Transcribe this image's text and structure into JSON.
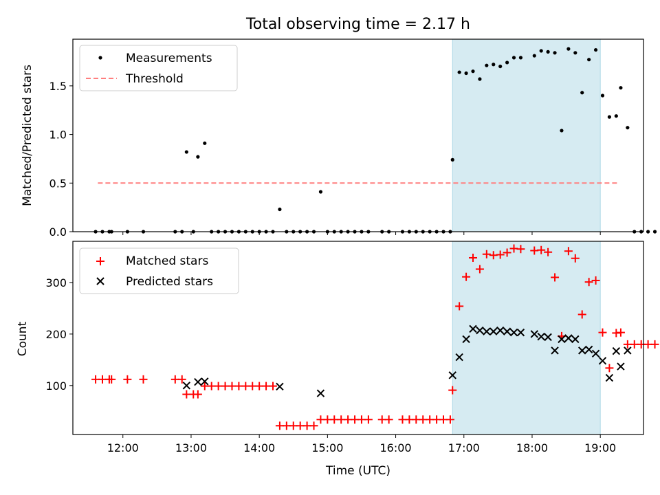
{
  "title": "Total observing time = 2.17 h",
  "colors": {
    "measurements": "#000000",
    "threshold": "#ff7f7f",
    "matched": "#ff0000",
    "predicted": "#000000",
    "span_fill": "#add8e6"
  },
  "chart_data": [
    {
      "type": "scatter",
      "ylabel": "Matched/Predicted stars",
      "xlabel": "",
      "xlim": [
        "11:16",
        "19:38"
      ],
      "ylim": [
        0,
        1.98
      ],
      "yticks": [
        "0.0",
        "0.5",
        "1.0",
        "1.5"
      ],
      "ytick_values": [
        0,
        0.5,
        1.0,
        1.5
      ],
      "legend": {
        "placement": "top-left",
        "entries": [
          "Measurements",
          "Threshold"
        ]
      },
      "highlight_span": [
        "16:50",
        "19:00"
      ],
      "threshold": {
        "name": "Threshold",
        "y": 0.5,
        "x": [
          "11:38",
          "19:16"
        ]
      },
      "series": [
        {
          "name": "Measurements",
          "points": [
            [
              "11:36",
              0
            ],
            [
              "11:42",
              0
            ],
            [
              "11:48",
              0
            ],
            [
              "11:50",
              0
            ],
            [
              "12:04",
              0
            ],
            [
              "12:18",
              0
            ],
            [
              "12:46",
              0
            ],
            [
              "12:52",
              0
            ],
            [
              "12:56",
              0.82
            ],
            [
              "13:02",
              0
            ],
            [
              "13:06",
              0.77
            ],
            [
              "13:12",
              0.91
            ],
            [
              "13:18",
              0
            ],
            [
              "13:24",
              0
            ],
            [
              "13:30",
              0
            ],
            [
              "13:36",
              0
            ],
            [
              "13:42",
              0
            ],
            [
              "13:48",
              0
            ],
            [
              "13:54",
              0
            ],
            [
              "14:00",
              0
            ],
            [
              "14:06",
              0
            ],
            [
              "14:12",
              0
            ],
            [
              "14:18",
              0.23
            ],
            [
              "14:24",
              0
            ],
            [
              "14:30",
              0
            ],
            [
              "14:36",
              0
            ],
            [
              "14:42",
              0
            ],
            [
              "14:48",
              0
            ],
            [
              "14:54",
              0.41
            ],
            [
              "15:00",
              0
            ],
            [
              "15:06",
              0
            ],
            [
              "15:12",
              0
            ],
            [
              "15:18",
              0
            ],
            [
              "15:24",
              0
            ],
            [
              "15:30",
              0
            ],
            [
              "15:36",
              0
            ],
            [
              "15:48",
              0
            ],
            [
              "15:54",
              0
            ],
            [
              "16:06",
              0
            ],
            [
              "16:12",
              0
            ],
            [
              "16:18",
              0
            ],
            [
              "16:24",
              0
            ],
            [
              "16:30",
              0
            ],
            [
              "16:36",
              0
            ],
            [
              "16:42",
              0
            ],
            [
              "16:48",
              0
            ],
            [
              "16:50",
              0.74
            ],
            [
              "16:56",
              1.64
            ],
            [
              "17:02",
              1.63
            ],
            [
              "17:08",
              1.65
            ],
            [
              "17:14",
              1.57
            ],
            [
              "17:20",
              1.71
            ],
            [
              "17:26",
              1.72
            ],
            [
              "17:32",
              1.7
            ],
            [
              "17:38",
              1.74
            ],
            [
              "17:44",
              1.79
            ],
            [
              "17:50",
              1.79
            ],
            [
              "18:02",
              1.81
            ],
            [
              "18:08",
              1.86
            ],
            [
              "18:14",
              1.85
            ],
            [
              "18:20",
              1.84
            ],
            [
              "18:26",
              1.04
            ],
            [
              "18:32",
              1.88
            ],
            [
              "18:38",
              1.84
            ],
            [
              "18:44",
              1.43
            ],
            [
              "18:50",
              1.77
            ],
            [
              "18:56",
              1.87
            ],
            [
              "19:02",
              1.4
            ],
            [
              "19:08",
              1.18
            ],
            [
              "19:14",
              1.19
            ],
            [
              "19:18",
              1.48
            ],
            [
              "19:24",
              1.07
            ],
            [
              "19:30",
              0
            ],
            [
              "19:36",
              0
            ],
            [
              "19:42",
              0
            ],
            [
              "19:48",
              0
            ]
          ]
        }
      ]
    },
    {
      "type": "scatter",
      "ylabel": "Count",
      "xlabel": "Time (UTC)",
      "xlim": [
        "11:16",
        "19:38"
      ],
      "ylim": [
        5,
        380
      ],
      "yticks": [
        "100",
        "200",
        "300"
      ],
      "ytick_values": [
        100,
        200,
        300
      ],
      "xticks": [
        "12:00",
        "13:00",
        "14:00",
        "15:00",
        "16:00",
        "17:00",
        "18:00",
        "19:00"
      ],
      "legend": {
        "placement": "top-left",
        "entries": [
          "Matched stars",
          "Predicted stars"
        ]
      },
      "highlight_span": [
        "16:50",
        "19:00"
      ],
      "series": [
        {
          "name": "Matched stars",
          "points": [
            [
              "11:36",
              112
            ],
            [
              "11:42",
              112
            ],
            [
              "11:48",
              112
            ],
            [
              "11:50",
              112
            ],
            [
              "12:04",
              112
            ],
            [
              "12:18",
              112
            ],
            [
              "12:46",
              112
            ],
            [
              "12:52",
              112
            ],
            [
              "12:56",
              83
            ],
            [
              "13:02",
              83
            ],
            [
              "13:06",
              83
            ],
            [
              "13:12",
              99
            ],
            [
              "13:18",
              99
            ],
            [
              "13:24",
              99
            ],
            [
              "13:30",
              99
            ],
            [
              "13:36",
              99
            ],
            [
              "13:42",
              99
            ],
            [
              "13:48",
              99
            ],
            [
              "13:54",
              99
            ],
            [
              "14:00",
              99
            ],
            [
              "14:06",
              99
            ],
            [
              "14:12",
              99
            ],
            [
              "14:18",
              22
            ],
            [
              "14:24",
              22
            ],
            [
              "14:30",
              22
            ],
            [
              "14:36",
              22
            ],
            [
              "14:42",
              22
            ],
            [
              "14:48",
              22
            ],
            [
              "14:54",
              34
            ],
            [
              "15:00",
              34
            ],
            [
              "15:06",
              34
            ],
            [
              "15:12",
              34
            ],
            [
              "15:18",
              34
            ],
            [
              "15:24",
              34
            ],
            [
              "15:30",
              34
            ],
            [
              "15:36",
              34
            ],
            [
              "15:48",
              34
            ],
            [
              "15:54",
              34
            ],
            [
              "16:06",
              34
            ],
            [
              "16:12",
              34
            ],
            [
              "16:18",
              34
            ],
            [
              "16:24",
              34
            ],
            [
              "16:30",
              34
            ],
            [
              "16:36",
              34
            ],
            [
              "16:42",
              34
            ],
            [
              "16:48",
              34
            ],
            [
              "16:50",
              91
            ],
            [
              "16:56",
              254
            ],
            [
              "17:02",
              311
            ],
            [
              "17:08",
              348
            ],
            [
              "17:14",
              326
            ],
            [
              "17:20",
              355
            ],
            [
              "17:26",
              353
            ],
            [
              "17:32",
              354
            ],
            [
              "17:38",
              358
            ],
            [
              "17:44",
              366
            ],
            [
              "17:50",
              365
            ],
            [
              "18:02",
              362
            ],
            [
              "18:08",
              363
            ],
            [
              "18:14",
              359
            ],
            [
              "18:20",
              310
            ],
            [
              "18:26",
              196
            ],
            [
              "18:32",
              361
            ],
            [
              "18:38",
              347
            ],
            [
              "18:44",
              238
            ],
            [
              "18:50",
              301
            ],
            [
              "18:56",
              304
            ],
            [
              "19:02",
              203
            ],
            [
              "19:08",
              134
            ],
            [
              "19:14",
              202
            ],
            [
              "19:18",
              203
            ],
            [
              "19:24",
              180
            ],
            [
              "19:30",
              180
            ],
            [
              "19:36",
              180
            ],
            [
              "19:42",
              180
            ],
            [
              "19:48",
              180
            ]
          ]
        },
        {
          "name": "Predicted stars",
          "points": [
            [
              "12:56",
              100
            ],
            [
              "13:06",
              107
            ],
            [
              "13:12",
              108
            ],
            [
              "14:18",
              98
            ],
            [
              "14:54",
              85
            ],
            [
              "16:50",
              120
            ],
            [
              "16:56",
              155
            ],
            [
              "17:02",
              190
            ],
            [
              "17:08",
              210
            ],
            [
              "17:14",
              207
            ],
            [
              "17:20",
              205
            ],
            [
              "17:26",
              205
            ],
            [
              "17:32",
              207
            ],
            [
              "17:38",
              205
            ],
            [
              "17:44",
              203
            ],
            [
              "17:50",
              203
            ],
            [
              "18:02",
              200
            ],
            [
              "18:08",
              195
            ],
            [
              "18:14",
              194
            ],
            [
              "18:20",
              168
            ],
            [
              "18:26",
              190
            ],
            [
              "18:32",
              192
            ],
            [
              "18:38",
              190
            ],
            [
              "18:44",
              168
            ],
            [
              "18:50",
              170
            ],
            [
              "18:56",
              162
            ],
            [
              "19:02",
              148
            ],
            [
              "19:08",
              115
            ],
            [
              "19:14",
              167
            ],
            [
              "19:18",
              137
            ],
            [
              "19:24",
              168
            ]
          ]
        }
      ]
    }
  ]
}
